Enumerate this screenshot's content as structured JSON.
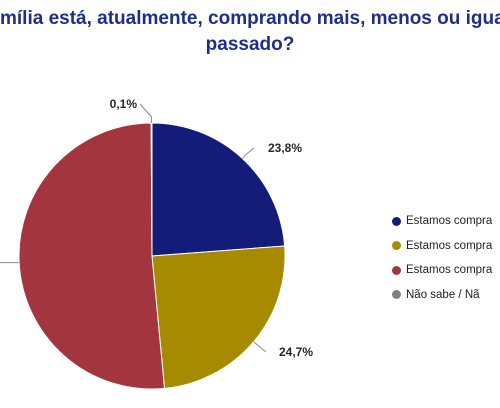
{
  "title_lines": [
    "mília está, atualmente, comprando mais, menos ou igual",
    "passado?"
  ],
  "chart_data": {
    "type": "pie",
    "start_angle_deg": 0,
    "direction": "clockwise",
    "slices": [
      {
        "label": "Estamos compra",
        "value": 23.8,
        "display": "23,8%",
        "color": "#141c7a"
      },
      {
        "label": "Estamos compra",
        "value": 24.7,
        "display": "24,7%",
        "color": "#a68a00"
      },
      {
        "label": "Estamos compra",
        "value": 51.4,
        "display": "",
        "color": "#a3353f"
      },
      {
        "label": "Não sabe  /  Nã",
        "value": 0.1,
        "display": "0,1%",
        "color": "#7f7f7f"
      }
    ],
    "legend_position": "right"
  }
}
